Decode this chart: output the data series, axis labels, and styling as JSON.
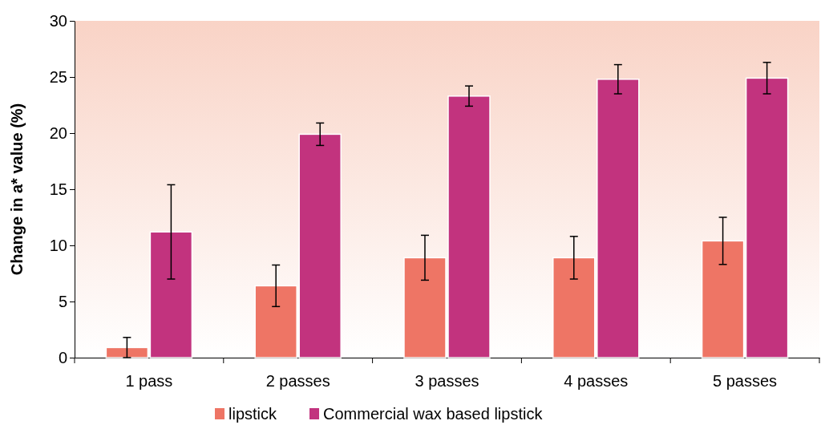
{
  "chart_data": {
    "type": "bar",
    "ylabel": "Change in a* value (%)",
    "categories": [
      "1 pass",
      "2 passes",
      "3 passes",
      "4 passes",
      "5 passes"
    ],
    "series": [
      {
        "name": "lipstick",
        "color": "#ee7565",
        "values": [
          0.9,
          6.4,
          8.9,
          8.9,
          10.4
        ],
        "errors": [
          0.9,
          1.85,
          2.0,
          1.9,
          2.1
        ]
      },
      {
        "name": "Commercial wax based lipstick",
        "color": "#c2337e",
        "values": [
          11.2,
          19.9,
          23.3,
          24.8,
          24.9
        ],
        "errors": [
          4.2,
          1.0,
          0.9,
          1.3,
          1.4
        ]
      }
    ],
    "ylim": [
      0,
      30
    ],
    "yticks": [
      0,
      5,
      10,
      15,
      20,
      25,
      30
    ],
    "grid": false,
    "legend": "bottom"
  }
}
